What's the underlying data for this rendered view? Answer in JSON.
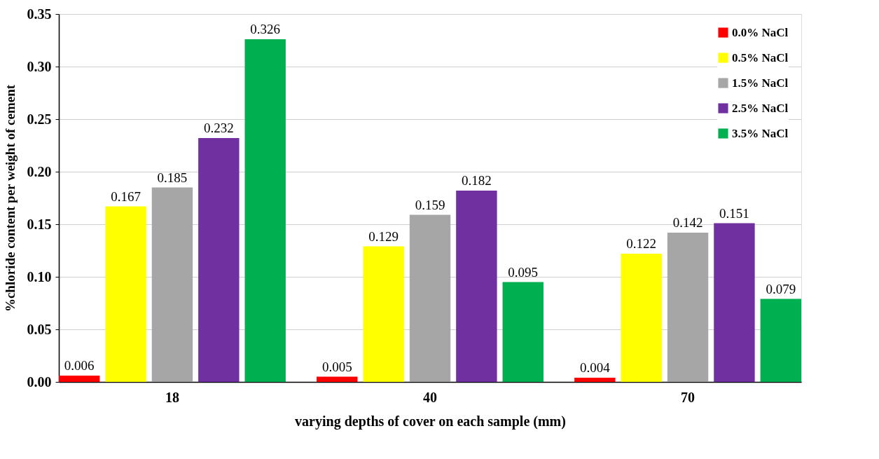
{
  "chart_data": {
    "type": "bar",
    "xlabel": "varying depths of cover on each sample (mm)",
    "ylabel": "%chloride content per weight of cement",
    "categories": [
      "18",
      "40",
      "70"
    ],
    "series": [
      {
        "name": "0.0% NaCl",
        "color": "#ff0000",
        "values": [
          0.006,
          0.005,
          0.004
        ]
      },
      {
        "name": "0.5% NaCl",
        "color": "#ffff00",
        "values": [
          0.167,
          0.129,
          0.122
        ]
      },
      {
        "name": "1.5% NaCl",
        "color": "#a6a6a6",
        "values": [
          0.185,
          0.159,
          0.142
        ]
      },
      {
        "name": "2.5% NaCl",
        "color": "#7030a0",
        "values": [
          0.232,
          0.182,
          0.151
        ]
      },
      {
        "name": "3.5% NaCl",
        "color": "#00b050",
        "values": [
          0.326,
          0.095,
          0.079
        ]
      }
    ],
    "ylim": [
      0,
      0.35
    ],
    "yticks": [
      {
        "value": 0,
        "label": "0.00"
      },
      {
        "value": 0.05,
        "label": "0.05"
      },
      {
        "value": 0.1,
        "label": "0.10"
      },
      {
        "value": 0.15,
        "label": "0.15"
      },
      {
        "value": 0.2,
        "label": "0.20"
      },
      {
        "value": 0.25,
        "label": "0.25"
      },
      {
        "value": 0.3,
        "label": "0.30"
      },
      {
        "value": 0.35,
        "label": "0.35"
      }
    ],
    "grid": "y",
    "legend": "top right",
    "data_labels": true
  }
}
